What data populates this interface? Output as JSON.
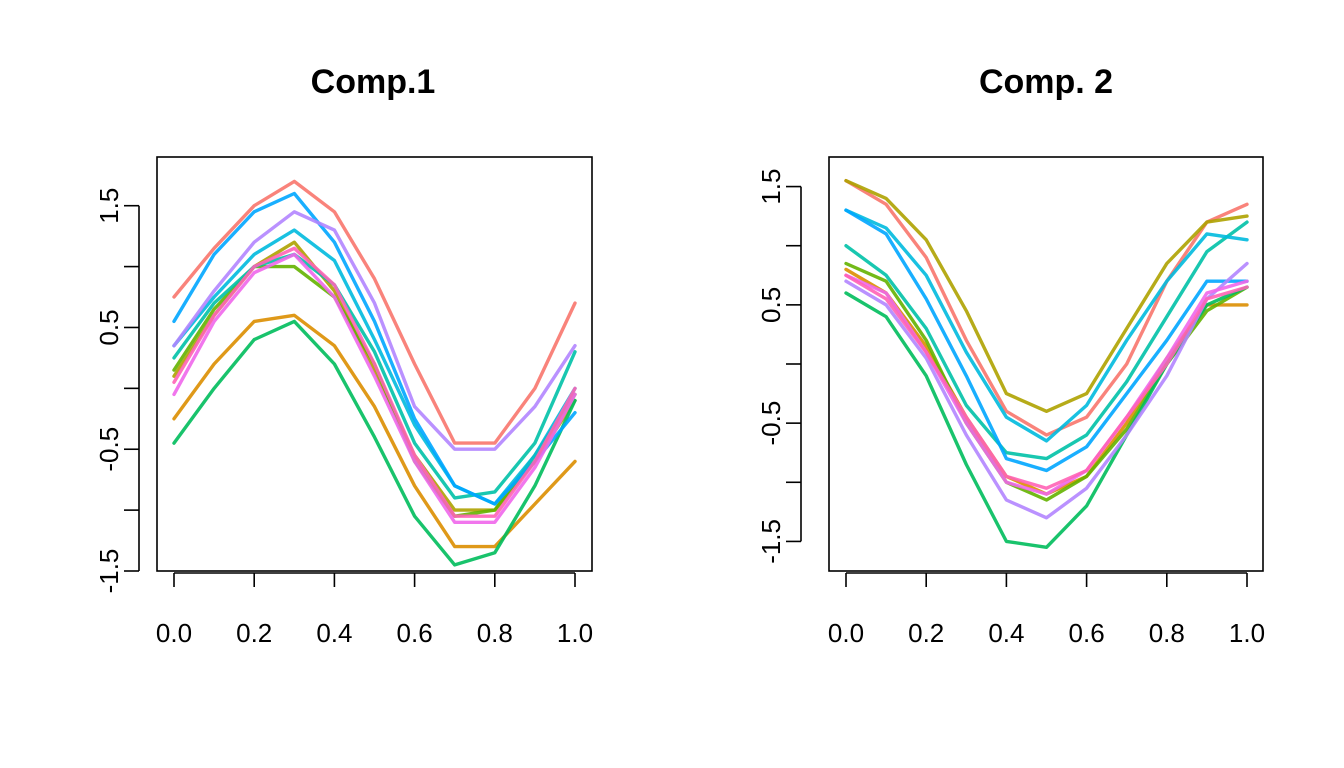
{
  "chart_data": [
    {
      "type": "line",
      "title": "Comp.1",
      "xlabel": "",
      "ylabel": "",
      "xlim": [
        0,
        1
      ],
      "ylim": [
        -1.5,
        1.9
      ],
      "x_ticks": [
        0,
        0.2,
        0.4,
        0.6,
        0.8,
        1
      ],
      "x_tick_labels": [
        "0.0",
        "0.2",
        "0.4",
        "0.6",
        "0.8",
        "1.0"
      ],
      "y_ticks": [
        -1.5,
        -1,
        -0.5,
        0,
        0.5,
        1,
        1.5
      ],
      "y_tick_labels": [
        "-1.5",
        "",
        "-0.5",
        "",
        "0.5",
        "",
        "1.5"
      ],
      "grid": false,
      "legend": "none",
      "x": [
        0,
        0.1,
        0.2,
        0.3,
        0.4,
        0.5,
        0.6,
        0.7,
        0.8,
        0.9,
        1.0
      ],
      "series": [
        {
          "color": "#F8766D",
          "values": [
            0.75,
            1.15,
            1.5,
            1.7,
            1.45,
            0.9,
            0.2,
            -0.45,
            -0.45,
            0.0,
            0.7
          ]
        },
        {
          "color": "#DB8E00",
          "values": [
            -0.25,
            0.2,
            0.55,
            0.6,
            0.35,
            -0.15,
            -0.8,
            -1.3,
            -1.3,
            -0.95,
            -0.6
          ]
        },
        {
          "color": "#AEA200",
          "values": [
            0.1,
            0.6,
            1.0,
            1.2,
            0.8,
            0.15,
            -0.55,
            -1.0,
            -1.0,
            -0.6,
            -0.1
          ]
        },
        {
          "color": "#64B200",
          "values": [
            0.15,
            0.65,
            1.0,
            1.0,
            0.75,
            0.2,
            -0.6,
            -1.05,
            -1.0,
            -0.55,
            -0.05
          ]
        },
        {
          "color": "#00BD5C",
          "values": [
            -0.45,
            0.0,
            0.4,
            0.55,
            0.2,
            -0.4,
            -1.05,
            -1.45,
            -1.35,
            -0.8,
            -0.1
          ]
        },
        {
          "color": "#00C1A7",
          "values": [
            0.25,
            0.7,
            1.0,
            1.1,
            0.85,
            0.3,
            -0.45,
            -0.9,
            -0.85,
            -0.45,
            0.3
          ]
        },
        {
          "color": "#00BADE",
          "values": [
            0.35,
            0.75,
            1.1,
            1.3,
            1.05,
            0.4,
            -0.3,
            -0.8,
            -0.95,
            -0.55,
            0.0
          ]
        },
        {
          "color": "#00A6FF",
          "values": [
            0.55,
            1.1,
            1.45,
            1.6,
            1.2,
            0.55,
            -0.25,
            -0.8,
            -0.95,
            -0.6,
            -0.2
          ]
        },
        {
          "color": "#B385FF",
          "values": [
            0.35,
            0.8,
            1.2,
            1.45,
            1.3,
            0.7,
            -0.15,
            -0.5,
            -0.5,
            -0.15,
            0.35
          ]
        },
        {
          "color": "#EF67EB",
          "values": [
            -0.05,
            0.55,
            0.95,
            1.1,
            0.75,
            0.1,
            -0.6,
            -1.1,
            -1.1,
            -0.65,
            -0.05
          ]
        },
        {
          "color": "#FF63B6",
          "values": [
            0.05,
            0.6,
            1.0,
            1.15,
            0.85,
            0.2,
            -0.55,
            -1.05,
            -1.05,
            -0.6,
            0.0
          ]
        }
      ]
    },
    {
      "type": "line",
      "title": "Comp. 2",
      "xlabel": "",
      "ylabel": "",
      "xlim": [
        0,
        1
      ],
      "ylim": [
        -1.75,
        1.75
      ],
      "x_ticks": [
        0,
        0.2,
        0.4,
        0.6,
        0.8,
        1
      ],
      "x_tick_labels": [
        "0.0",
        "0.2",
        "0.4",
        "0.6",
        "0.8",
        "1.0"
      ],
      "y_ticks": [
        -1.5,
        -1,
        -0.5,
        0,
        0.5,
        1,
        1.5
      ],
      "y_tick_labels": [
        "-1.5",
        "",
        "-0.5",
        "",
        "0.5",
        "",
        "1.5"
      ],
      "grid": false,
      "legend": "none",
      "x": [
        0,
        0.1,
        0.2,
        0.3,
        0.4,
        0.5,
        0.6,
        0.7,
        0.8,
        0.9,
        1.0
      ],
      "series": [
        {
          "color": "#F8766D",
          "values": [
            1.55,
            1.35,
            0.9,
            0.2,
            -0.4,
            -0.6,
            -0.45,
            0.0,
            0.7,
            1.2,
            1.35
          ]
        },
        {
          "color": "#DB8E00",
          "values": [
            0.8,
            0.6,
            0.15,
            -0.45,
            -0.95,
            -1.1,
            -0.95,
            -0.5,
            0.05,
            0.5,
            0.5
          ]
        },
        {
          "color": "#AEA200",
          "values": [
            1.55,
            1.4,
            1.05,
            0.45,
            -0.25,
            -0.4,
            -0.25,
            0.3,
            0.85,
            1.2,
            1.25
          ]
        },
        {
          "color": "#64B200",
          "values": [
            0.85,
            0.7,
            0.2,
            -0.5,
            -1.0,
            -1.15,
            -0.95,
            -0.55,
            0.0,
            0.45,
            0.65
          ]
        },
        {
          "color": "#00BD5C",
          "values": [
            0.6,
            0.4,
            -0.1,
            -0.85,
            -1.5,
            -1.55,
            -1.2,
            -0.6,
            0.0,
            0.5,
            0.65
          ]
        },
        {
          "color": "#00C1A7",
          "values": [
            1.0,
            0.75,
            0.3,
            -0.35,
            -0.75,
            -0.8,
            -0.6,
            -0.15,
            0.4,
            0.95,
            1.2
          ]
        },
        {
          "color": "#00BADE",
          "values": [
            1.3,
            1.15,
            0.75,
            0.1,
            -0.45,
            -0.65,
            -0.35,
            0.2,
            0.7,
            1.1,
            1.05
          ]
        },
        {
          "color": "#00A6FF",
          "values": [
            1.3,
            1.1,
            0.55,
            -0.1,
            -0.8,
            -0.9,
            -0.7,
            -0.25,
            0.2,
            0.7,
            0.7
          ]
        },
        {
          "color": "#B385FF",
          "values": [
            0.7,
            0.5,
            0.05,
            -0.6,
            -1.15,
            -1.3,
            -1.05,
            -0.6,
            -0.1,
            0.55,
            0.85
          ]
        },
        {
          "color": "#EF67EB",
          "values": [
            0.75,
            0.6,
            0.1,
            -0.5,
            -1.0,
            -1.1,
            -0.9,
            -0.45,
            0.05,
            0.6,
            0.7
          ]
        },
        {
          "color": "#FF63B6",
          "values": [
            0.75,
            0.55,
            0.1,
            -0.45,
            -0.95,
            -1.05,
            -0.9,
            -0.45,
            0.0,
            0.55,
            0.65
          ]
        }
      ]
    }
  ]
}
